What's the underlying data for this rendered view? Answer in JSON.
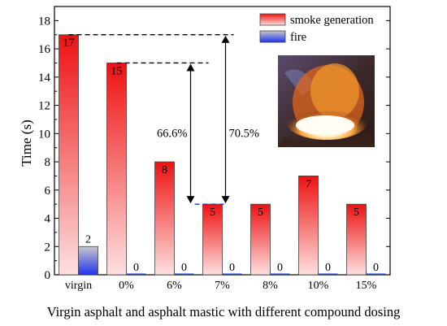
{
  "chart_data": {
    "type": "bar",
    "ylabel": "Time (s)",
    "xlabel": "Virgin asphalt and asphalt mastic with different compound dosing",
    "ylim": [
      0,
      19
    ],
    "yticks": [
      0,
      2,
      4,
      6,
      8,
      10,
      12,
      14,
      16,
      18
    ],
    "categories": [
      "virgin",
      "0%",
      "6%",
      "7%",
      "8%",
      "10%",
      "15%"
    ],
    "series": [
      {
        "name": "smoke generation",
        "values": [
          17,
          15,
          8,
          5,
          5,
          7,
          5
        ],
        "color": "#ee1111"
      },
      {
        "name": "fire",
        "values": [
          2,
          0,
          0,
          0,
          0,
          0,
          0
        ],
        "color": "#2233ee"
      }
    ],
    "data_labels": {
      "smoke generation": [
        "17",
        "15",
        "8",
        "5",
        "5",
        "7",
        "5"
      ],
      "fire": [
        "2",
        "0",
        "0",
        "0",
        "0",
        "0",
        "0"
      ]
    },
    "annotations": [
      {
        "text": "66.6%",
        "from_value": 15,
        "to_value": 5
      },
      {
        "text": "70.5%",
        "from_value": 17,
        "to_value": 5
      }
    ],
    "legend": "top-right",
    "grid": false
  }
}
